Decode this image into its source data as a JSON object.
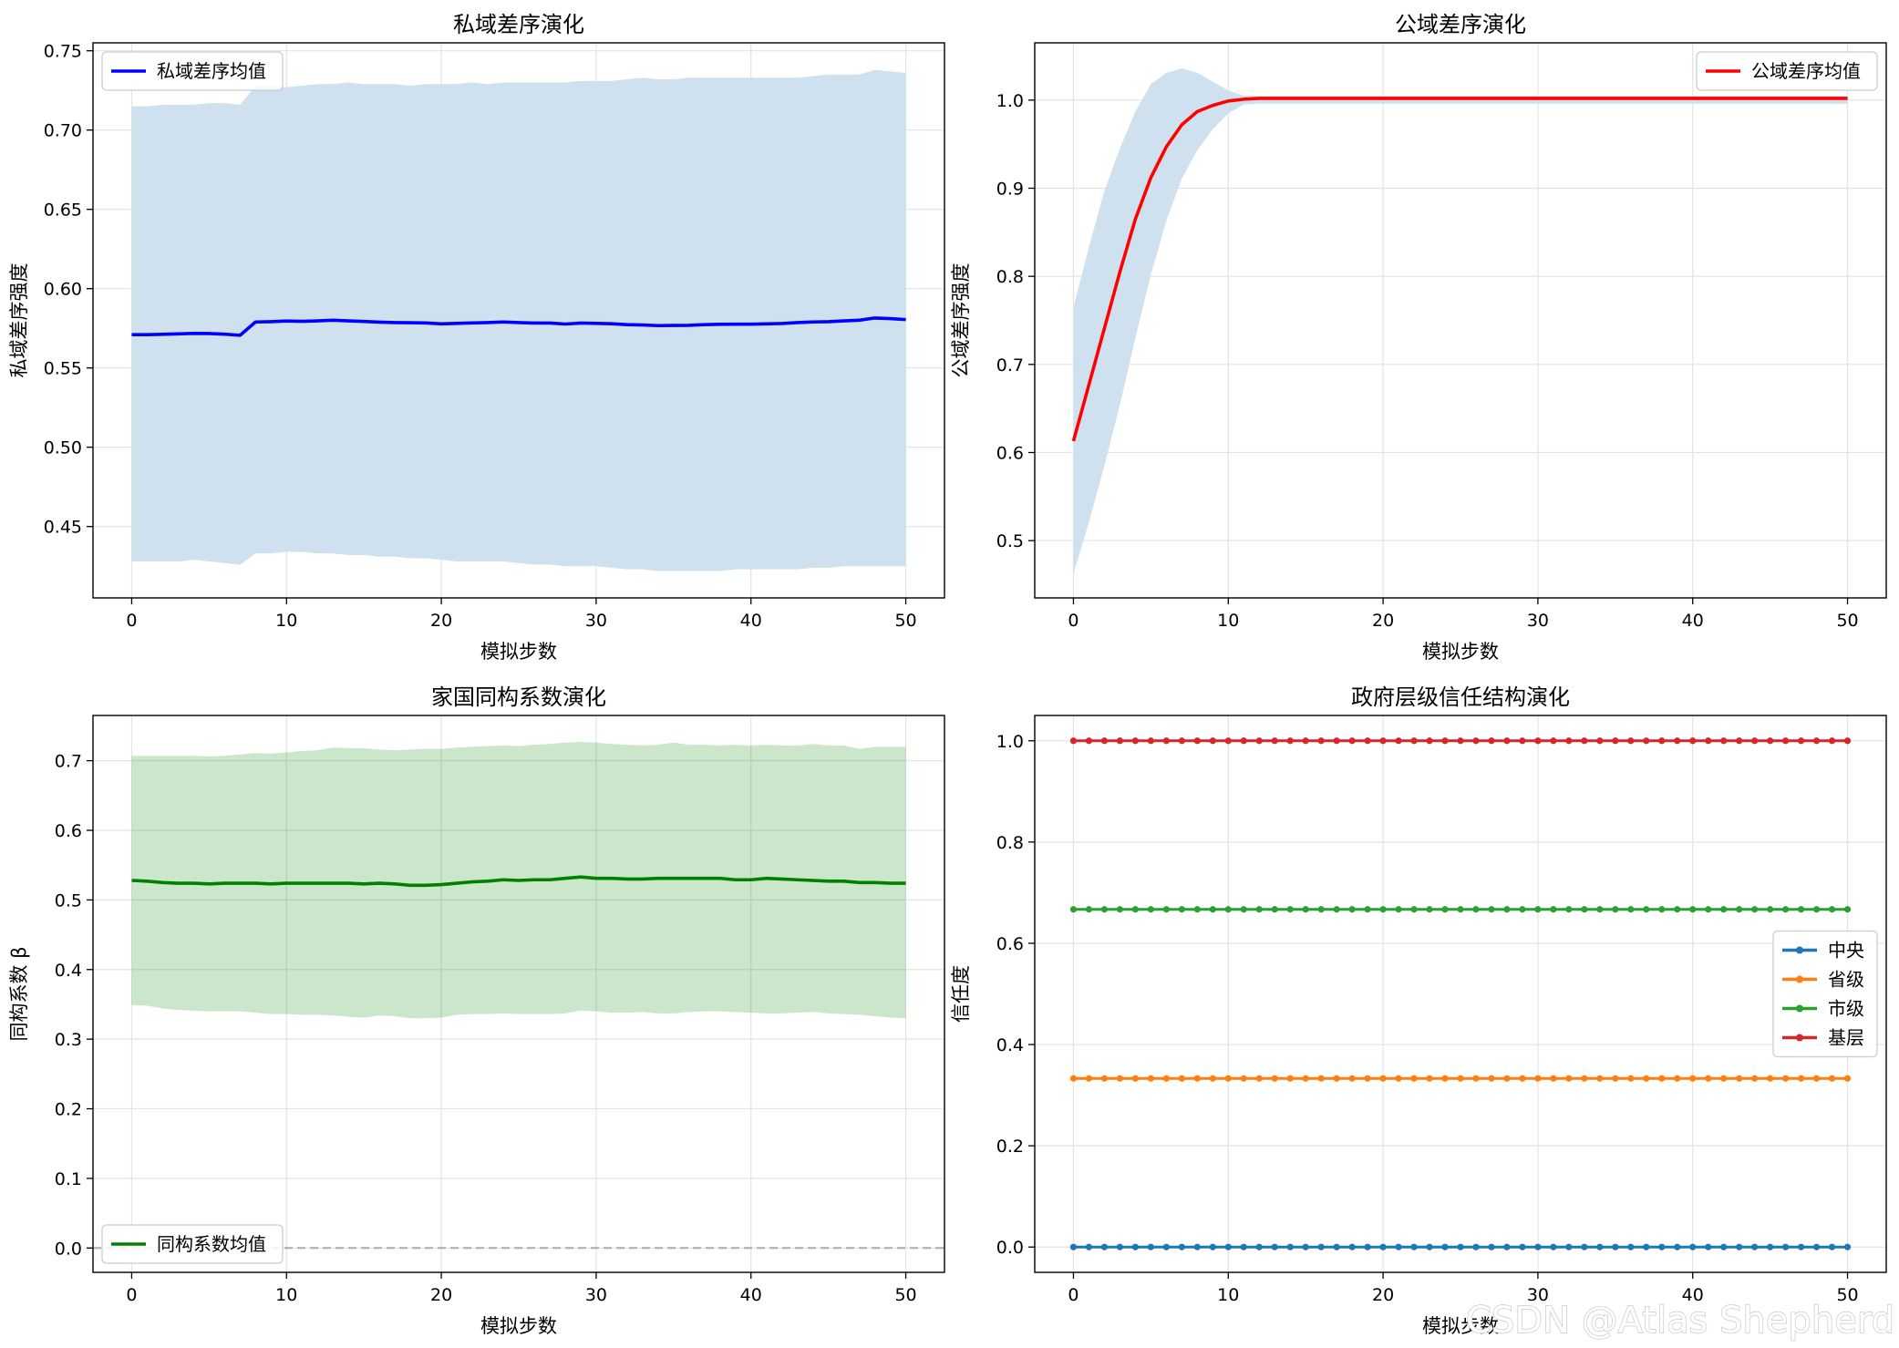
{
  "chart_data": [
    {
      "type": "line",
      "title": "私域差序演化",
      "xlabel": "模拟步数",
      "ylabel": "私域差序强度",
      "xlim": [
        -2.5,
        52.5
      ],
      "ylim": [
        0.405,
        0.755
      ],
      "xticks": [
        0,
        10,
        20,
        30,
        40,
        50
      ],
      "yticks": [
        0.45,
        0.5,
        0.55,
        0.6,
        0.65,
        0.7,
        0.75
      ],
      "ytick_decimals": 2,
      "grid": true,
      "legend_position": "upper-left",
      "band_color": "#cfe1ee",
      "band_opacity": 1,
      "x": [
        0,
        1,
        2,
        3,
        4,
        5,
        6,
        7,
        8,
        9,
        10,
        11,
        12,
        13,
        14,
        15,
        16,
        17,
        18,
        19,
        20,
        21,
        22,
        23,
        24,
        25,
        26,
        27,
        28,
        29,
        30,
        31,
        32,
        33,
        34,
        35,
        36,
        37,
        38,
        39,
        40,
        41,
        42,
        43,
        44,
        45,
        46,
        47,
        48,
        49,
        50
      ],
      "series": [
        {
          "name": "私域差序均值",
          "color": "#0000ff",
          "values": [
            0.571,
            0.571,
            0.5712,
            0.5715,
            0.5718,
            0.5717,
            0.5713,
            0.5706,
            0.579,
            0.5792,
            0.5796,
            0.5794,
            0.5797,
            0.5801,
            0.5797,
            0.5793,
            0.5789,
            0.5786,
            0.5785,
            0.5784,
            0.5778,
            0.5781,
            0.5784,
            0.5786,
            0.579,
            0.5786,
            0.5783,
            0.5783,
            0.5777,
            0.5783,
            0.5781,
            0.5779,
            0.5773,
            0.5771,
            0.5767,
            0.5768,
            0.5769,
            0.5773,
            0.5775,
            0.5776,
            0.5776,
            0.5778,
            0.578,
            0.5786,
            0.579,
            0.5792,
            0.5797,
            0.5801,
            0.5815,
            0.5811,
            0.5805
          ],
          "band_upper": [
            0.715,
            0.715,
            0.716,
            0.716,
            0.716,
            0.717,
            0.717,
            0.716,
            0.728,
            0.728,
            0.727,
            0.728,
            0.729,
            0.729,
            0.73,
            0.729,
            0.729,
            0.729,
            0.728,
            0.729,
            0.729,
            0.729,
            0.73,
            0.729,
            0.73,
            0.73,
            0.73,
            0.73,
            0.73,
            0.731,
            0.731,
            0.731,
            0.732,
            0.733,
            0.732,
            0.732,
            0.733,
            0.733,
            0.733,
            0.733,
            0.733,
            0.733,
            0.733,
            0.733,
            0.734,
            0.735,
            0.735,
            0.735,
            0.738,
            0.737,
            0.736
          ],
          "band_lower": [
            0.428,
            0.428,
            0.428,
            0.428,
            0.429,
            0.428,
            0.427,
            0.426,
            0.433,
            0.433,
            0.434,
            0.434,
            0.433,
            0.433,
            0.432,
            0.432,
            0.431,
            0.431,
            0.43,
            0.43,
            0.429,
            0.428,
            0.428,
            0.428,
            0.428,
            0.427,
            0.426,
            0.426,
            0.425,
            0.425,
            0.425,
            0.424,
            0.423,
            0.423,
            0.422,
            0.422,
            0.422,
            0.422,
            0.422,
            0.423,
            0.423,
            0.423,
            0.423,
            0.423,
            0.424,
            0.424,
            0.425,
            0.425,
            0.425,
            0.425,
            0.425
          ]
        }
      ]
    },
    {
      "type": "line",
      "title": "公域差序演化",
      "xlabel": "模拟步数",
      "ylabel": "公域差序强度",
      "xlim": [
        -2.5,
        52.5
      ],
      "ylim": [
        0.435,
        1.065
      ],
      "xticks": [
        0,
        10,
        20,
        30,
        40,
        50
      ],
      "yticks": [
        0.5,
        0.6,
        0.7,
        0.8,
        0.9,
        1.0
      ],
      "ytick_decimals": 1,
      "grid": true,
      "legend_position": "upper-right",
      "band_color": "#cfe1ee",
      "band_opacity": 1,
      "x": [
        0,
        1,
        2,
        3,
        4,
        5,
        6,
        7,
        8,
        9,
        10,
        11,
        12,
        13,
        14,
        15,
        16,
        17,
        18,
        19,
        20,
        21,
        22,
        23,
        24,
        25,
        26,
        27,
        28,
        29,
        30,
        31,
        32,
        33,
        34,
        35,
        36,
        37,
        38,
        39,
        40,
        41,
        42,
        43,
        44,
        45,
        46,
        47,
        48,
        49,
        50
      ],
      "series": [
        {
          "name": "公域差序均值",
          "color": "#ff0000",
          "values": [
            0.613,
            0.677,
            0.741,
            0.805,
            0.865,
            0.912,
            0.947,
            0.972,
            0.987,
            0.994,
            0.999,
            1.001,
            1.002,
            1.002,
            1.002,
            1.002,
            1.002,
            1.002,
            1.002,
            1.002,
            1.002,
            1.002,
            1.002,
            1.002,
            1.002,
            1.002,
            1.002,
            1.002,
            1.002,
            1.002,
            1.002,
            1.002,
            1.002,
            1.002,
            1.002,
            1.002,
            1.002,
            1.002,
            1.002,
            1.002,
            1.002,
            1.002,
            1.002,
            1.002,
            1.002,
            1.002,
            1.002,
            1.002,
            1.002,
            1.002,
            1.002
          ],
          "band_upper": [
            0.765,
            0.833,
            0.897,
            0.945,
            0.987,
            1.018,
            1.031,
            1.036,
            1.031,
            1.021,
            1.011,
            1.005,
            1.005,
            1.005,
            1.005,
            1.005,
            1.005,
            1.005,
            1.005,
            1.005,
            1.005,
            1.005,
            1.005,
            1.005,
            1.005,
            1.005,
            1.005,
            1.005,
            1.005,
            1.005,
            1.005,
            1.005,
            1.005,
            1.005,
            1.005,
            1.005,
            1.005,
            1.005,
            1.005,
            1.005,
            1.005,
            1.005,
            1.005,
            1.005,
            1.005,
            1.005,
            1.005,
            1.005,
            1.005,
            1.005,
            1.005
          ],
          "band_lower": [
            0.462,
            0.521,
            0.585,
            0.654,
            0.73,
            0.802,
            0.863,
            0.911,
            0.943,
            0.967,
            0.985,
            0.995,
            0.996,
            0.996,
            0.996,
            0.996,
            0.996,
            0.996,
            0.996,
            0.996,
            0.996,
            0.996,
            0.996,
            0.996,
            0.996,
            0.996,
            0.996,
            0.996,
            0.996,
            0.996,
            0.996,
            0.996,
            0.996,
            0.996,
            0.996,
            0.996,
            0.996,
            0.996,
            0.996,
            0.996,
            0.996,
            0.996,
            0.996,
            0.996,
            0.996,
            0.996,
            0.996,
            0.996,
            0.996,
            0.996,
            0.996
          ]
        }
      ]
    },
    {
      "type": "line",
      "title": "家国同构系数演化",
      "xlabel": "模拟步数",
      "ylabel": "同构系数 β",
      "xlim": [
        -2.5,
        52.5
      ],
      "ylim": [
        -0.035,
        0.765
      ],
      "xticks": [
        0,
        10,
        20,
        30,
        40,
        50
      ],
      "yticks": [
        0.0,
        0.1,
        0.2,
        0.3,
        0.4,
        0.5,
        0.6,
        0.7
      ],
      "ytick_decimals": 1,
      "grid": true,
      "legend_position": "lower-left",
      "band_color": "#008000",
      "band_opacity": 0.2,
      "reference_line": {
        "y": 0,
        "color": "#999999",
        "dashed": true
      },
      "x": [
        0,
        1,
        2,
        3,
        4,
        5,
        6,
        7,
        8,
        9,
        10,
        11,
        12,
        13,
        14,
        15,
        16,
        17,
        18,
        19,
        20,
        21,
        22,
        23,
        24,
        25,
        26,
        27,
        28,
        29,
        30,
        31,
        32,
        33,
        34,
        35,
        36,
        37,
        38,
        39,
        40,
        41,
        42,
        43,
        44,
        45,
        46,
        47,
        48,
        49,
        50
      ],
      "series": [
        {
          "name": "同构系数均值",
          "color": "#008000",
          "values": [
            0.528,
            0.527,
            0.525,
            0.524,
            0.524,
            0.523,
            0.524,
            0.524,
            0.524,
            0.523,
            0.524,
            0.524,
            0.524,
            0.524,
            0.524,
            0.523,
            0.524,
            0.523,
            0.521,
            0.521,
            0.522,
            0.524,
            0.526,
            0.527,
            0.529,
            0.528,
            0.529,
            0.529,
            0.531,
            0.533,
            0.531,
            0.531,
            0.53,
            0.53,
            0.531,
            0.531,
            0.531,
            0.531,
            0.531,
            0.529,
            0.529,
            0.531,
            0.53,
            0.529,
            0.528,
            0.527,
            0.527,
            0.525,
            0.525,
            0.524,
            0.524
          ],
          "band_upper": [
            0.707,
            0.707,
            0.707,
            0.707,
            0.707,
            0.706,
            0.707,
            0.709,
            0.711,
            0.71,
            0.712,
            0.714,
            0.715,
            0.719,
            0.718,
            0.718,
            0.716,
            0.715,
            0.716,
            0.717,
            0.717,
            0.719,
            0.72,
            0.721,
            0.722,
            0.721,
            0.723,
            0.724,
            0.726,
            0.727,
            0.726,
            0.724,
            0.723,
            0.722,
            0.723,
            0.726,
            0.723,
            0.723,
            0.722,
            0.723,
            0.722,
            0.723,
            0.722,
            0.722,
            0.724,
            0.722,
            0.722,
            0.717,
            0.72,
            0.72,
            0.72
          ],
          "band_lower": [
            0.349,
            0.348,
            0.344,
            0.342,
            0.341,
            0.34,
            0.34,
            0.34,
            0.338,
            0.336,
            0.336,
            0.335,
            0.335,
            0.334,
            0.332,
            0.331,
            0.334,
            0.333,
            0.33,
            0.33,
            0.331,
            0.335,
            0.336,
            0.336,
            0.337,
            0.336,
            0.336,
            0.336,
            0.337,
            0.341,
            0.34,
            0.338,
            0.338,
            0.339,
            0.337,
            0.337,
            0.339,
            0.34,
            0.34,
            0.339,
            0.338,
            0.337,
            0.337,
            0.338,
            0.339,
            0.337,
            0.336,
            0.335,
            0.333,
            0.331,
            0.33
          ]
        }
      ]
    },
    {
      "type": "line",
      "title": "政府层级信任结构演化",
      "xlabel": "模拟步数",
      "ylabel": "信任度",
      "xlim": [
        -2.5,
        52.5
      ],
      "ylim": [
        -0.05,
        1.05
      ],
      "xticks": [
        0,
        10,
        20,
        30,
        40,
        50
      ],
      "yticks": [
        0.0,
        0.2,
        0.4,
        0.6,
        0.8,
        1.0
      ],
      "ytick_decimals": 1,
      "grid": true,
      "legend_position": "center-right",
      "markers": true,
      "x": [
        0,
        1,
        2,
        3,
        4,
        5,
        6,
        7,
        8,
        9,
        10,
        11,
        12,
        13,
        14,
        15,
        16,
        17,
        18,
        19,
        20,
        21,
        22,
        23,
        24,
        25,
        26,
        27,
        28,
        29,
        30,
        31,
        32,
        33,
        34,
        35,
        36,
        37,
        38,
        39,
        40,
        41,
        42,
        43,
        44,
        45,
        46,
        47,
        48,
        49,
        50
      ],
      "series": [
        {
          "name": "中央",
          "color": "#1f77b4",
          "constant": 0.0
        },
        {
          "name": "省级",
          "color": "#ff7f0e",
          "constant": 0.333
        },
        {
          "name": "市级",
          "color": "#2ca02c",
          "constant": 0.667
        },
        {
          "name": "基层",
          "color": "#d62728",
          "constant": 1.0
        }
      ]
    }
  ],
  "watermark": "CSDN @Atlas Shepherd"
}
